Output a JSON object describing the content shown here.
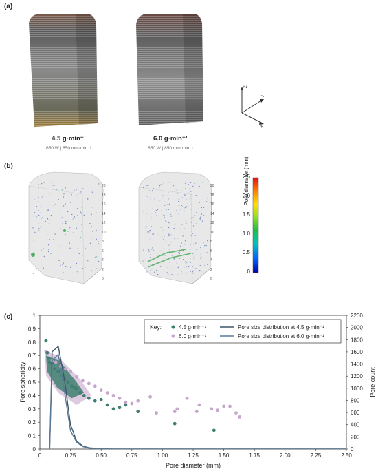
{
  "panel_a": {
    "label": "(a)",
    "samples": [
      {
        "rate": "4.5 g·min⁻¹",
        "params": "650 W | 850 mm·min⁻¹"
      },
      {
        "rate": "6.0 g·min⁻¹",
        "params": "650 W | 850 mm·min⁻¹"
      }
    ],
    "axes": {
      "z": "Z",
      "y": "Y",
      "x": "X"
    }
  },
  "panel_b": {
    "label": "(b)",
    "colorbar": {
      "label": "Pore diameter (mm)",
      "ticks": [
        "0",
        "0.5",
        "1.0",
        "1.5",
        "2.0",
        "2.5"
      ],
      "colors": [
        "#0000a0",
        "#0060ff",
        "#00c0c0",
        "#20c040",
        "#a0e020",
        "#ffe000",
        "#ff8000",
        "#e01010"
      ]
    },
    "height_ticks": [
      "0",
      "2",
      "4",
      "6",
      "8",
      "10",
      "12",
      "14",
      "16",
      "18",
      "20"
    ],
    "base_ticks": [
      "0",
      "2",
      "4",
      "6",
      "8",
      "10"
    ]
  },
  "panel_c": {
    "label": "(c)",
    "chart_data": {
      "type": "scatter",
      "xlabel": "Pore diameter (mm)",
      "ylabel": "Pore sphericity",
      "y2label": "Pore count",
      "xlim": [
        0,
        2.5
      ],
      "ylim": [
        0,
        1
      ],
      "y2lim": [
        0,
        2200
      ],
      "x_ticks": [
        "0",
        "0.25",
        "0.50",
        "0.75",
        "1.00",
        "1.25",
        "1.50",
        "1.75",
        "2.00",
        "2.25",
        "2.50"
      ],
      "y_ticks": [
        "0",
        "0.1",
        "0.2",
        "0.3",
        "0.4",
        "0.5",
        "0.6",
        "0.7",
        "0.8",
        "0.9",
        "1"
      ],
      "y2_ticks": [
        "0",
        "200",
        "400",
        "600",
        "800",
        "1000",
        "1200",
        "1400",
        "1600",
        "1800",
        "2000",
        "2200"
      ],
      "legend": {
        "title": "Key:",
        "entries": [
          "4.5 g·min⁻¹",
          "6.0 g·min⁻¹",
          "Pore size distribution at 4.5 g·min⁻¹",
          "Pore size distribution at 6.0 g·min⁻¹"
        ]
      },
      "colors": {
        "s45": "#3f7f6f",
        "s60": "#c6a6cc",
        "line45": "#3a5868",
        "line60": "#5a7a96"
      },
      "series": [
        {
          "name": "4.5 g·min⁻¹",
          "type": "scatter",
          "x": [
            0.05,
            0.06,
            0.07,
            0.08,
            0.1,
            0.12,
            0.15,
            0.18,
            0.2,
            0.23,
            0.26,
            0.28,
            0.3,
            0.33,
            0.36,
            0.4,
            0.45,
            0.5,
            0.55,
            0.6,
            0.65,
            0.7,
            0.8,
            1.1,
            1.42
          ],
          "y": [
            0.81,
            0.72,
            0.68,
            0.65,
            0.64,
            0.6,
            0.58,
            0.55,
            0.52,
            0.5,
            0.47,
            0.46,
            0.45,
            0.42,
            0.4,
            0.38,
            0.36,
            0.37,
            0.33,
            0.3,
            0.31,
            0.33,
            0.28,
            0.19,
            0.14
          ]
        },
        {
          "name": "6.0 g·min⁻¹",
          "type": "scatter",
          "x": [
            0.05,
            0.07,
            0.1,
            0.13,
            0.17,
            0.21,
            0.25,
            0.3,
            0.35,
            0.4,
            0.45,
            0.5,
            0.55,
            0.6,
            0.65,
            0.7,
            0.75,
            0.8,
            0.9,
            0.95,
            1.1,
            1.12,
            1.2,
            1.28,
            1.3,
            1.4,
            1.45,
            1.5,
            1.55,
            1.6,
            1.63
          ],
          "y": [
            0.73,
            0.72,
            0.66,
            0.65,
            0.62,
            0.6,
            0.58,
            0.54,
            0.51,
            0.49,
            0.47,
            0.44,
            0.42,
            0.4,
            0.38,
            0.35,
            0.34,
            0.36,
            0.39,
            0.27,
            0.28,
            0.3,
            0.38,
            0.28,
            0.33,
            0.3,
            0.29,
            0.32,
            0.32,
            0.27,
            0.24
          ]
        },
        {
          "name": "Pore size distribution at 4.5 g·min⁻¹",
          "type": "line",
          "axis": "y2",
          "x": [
            0.08,
            0.1,
            0.15,
            0.2,
            0.25,
            0.3,
            0.35,
            0.4,
            0.5,
            0.6,
            1.0,
            2.5
          ],
          "y": [
            0,
            1600,
            1690,
            1150,
            400,
            130,
            50,
            20,
            5,
            0,
            0,
            0
          ]
        },
        {
          "name": "Pore size distribution at 6.0 g·min⁻¹",
          "type": "line",
          "axis": "y2",
          "x": [
            0.08,
            0.1,
            0.15,
            0.2,
            0.25,
            0.3,
            0.35,
            0.4,
            0.5,
            0.6,
            1.0,
            2.5
          ],
          "y": [
            0,
            1450,
            1560,
            950,
            300,
            110,
            40,
            15,
            5,
            0,
            0,
            0
          ]
        }
      ]
    }
  }
}
